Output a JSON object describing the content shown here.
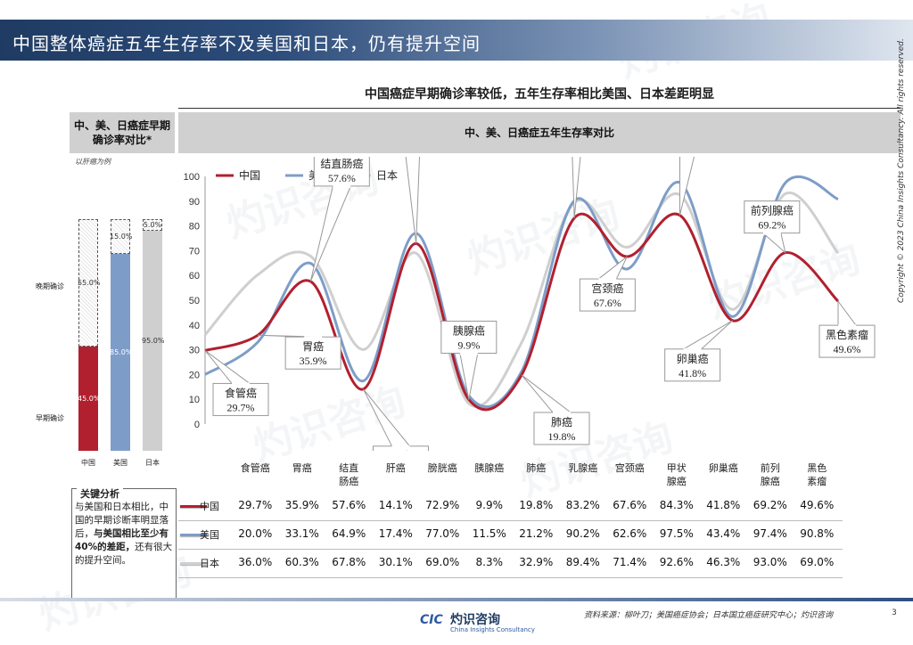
{
  "page": {
    "title": "中国整体癌症五年生存率不及美国和日本，仍有提升空间",
    "subtitle": "中国癌症早期确诊率较低，五年生存率相比美国、日本差距明显",
    "page_number": "3",
    "source": "资料来源：柳叶刀；美国癌症协会；日本国立癌症研究中心；灼识咨询",
    "copyright": "Copyright © 2023 China Insights Consultancy. All rights reserved.",
    "watermark_cn": "灼识咨询",
    "watermark_en": "China Insights Consultancy",
    "logo_mark": "CIC",
    "logo_text": "灼识咨询",
    "logo_sub": "China Insights Consultancy"
  },
  "left_panel": {
    "header": "中、美、日癌症早期确诊率对比*",
    "note": "以肝癌为例",
    "late_label": "晚期确诊",
    "early_label": "早期确诊",
    "bars": [
      {
        "country": "中国",
        "early": 45.0,
        "late": 55.0,
        "early_label": "45.0%",
        "late_label": "55.0%",
        "color": "#b1202f"
      },
      {
        "country": "美国",
        "early": 85.0,
        "late": 15.0,
        "early_label": "85.0%",
        "late_label": "15.0%",
        "color": "#7d9dc8"
      },
      {
        "country": "日本",
        "early": 95.0,
        "late": 5.0,
        "early_label": "95.0%",
        "late_label": "5.0%",
        "color": "#cfcfcf"
      }
    ]
  },
  "analysis": {
    "title": "关键分析",
    "text_plain": "与美国和日本相比，中国的早期诊断率明显落后，",
    "text_bold": "与美国相比至少有40%的差距，",
    "text_tail": "还有很大的提升空间。"
  },
  "chart_header": "中、美、日癌症五年生存率对比",
  "chart_data": {
    "type": "line",
    "categories": [
      "食管癌",
      "胃癌",
      "结直肠癌",
      "肝癌",
      "膀胱癌",
      "胰腺癌",
      "肺癌",
      "乳腺癌",
      "宫颈癌",
      "甲状腺癌",
      "卵巢癌",
      "前列腺癌",
      "黑色素瘤"
    ],
    "table_headers": [
      "食管癌",
      "胃癌",
      "结直\n肠癌",
      "肝癌",
      "膀胱癌",
      "胰腺癌",
      "肺癌",
      "乳腺癌",
      "宫颈癌",
      "甲状\n腺癌",
      "卵巢癌",
      "前列\n腺癌",
      "黑色\n素瘤"
    ],
    "series": [
      {
        "name": "中国",
        "color": "#b1202f",
        "values": [
          29.7,
          35.9,
          57.6,
          14.1,
          72.9,
          9.9,
          19.8,
          83.2,
          67.6,
          84.3,
          41.8,
          69.2,
          49.6
        ],
        "labels": [
          "29.7%",
          "35.9%",
          "57.6%",
          "14.1%",
          "72.9%",
          "9.9%",
          "19.8%",
          "83.2%",
          "67.6%",
          "84.3%",
          "41.8%",
          "69.2%",
          "49.6%"
        ]
      },
      {
        "name": "美国",
        "color": "#7d9dc8",
        "values": [
          20.0,
          33.1,
          64.9,
          17.4,
          77.0,
          11.5,
          21.2,
          90.2,
          62.6,
          97.5,
          43.4,
          97.4,
          90.8
        ],
        "labels": [
          "20.0%",
          "33.1%",
          "64.9%",
          "17.4%",
          "77.0%",
          "11.5%",
          "21.2%",
          "90.2%",
          "62.6%",
          "97.5%",
          "43.4%",
          "97.4%",
          "90.8%"
        ]
      },
      {
        "name": "日本",
        "color": "#cfcfcf",
        "values": [
          36.0,
          60.3,
          67.8,
          30.1,
          69.0,
          8.3,
          32.9,
          89.4,
          71.4,
          92.6,
          46.3,
          93.0,
          69.0
        ],
        "labels": [
          "36.0%",
          "60.3%",
          "67.8%",
          "30.1%",
          "69.0%",
          "8.3%",
          "32.9%",
          "89.4%",
          "71.4%",
          "92.6%",
          "46.3%",
          "93.0%",
          "69.0%"
        ]
      }
    ],
    "callouts": [
      {
        "name": "食管癌",
        "value": "29.7%"
      },
      {
        "name": "胃癌",
        "value": "35.9%"
      },
      {
        "name": "结直肠癌",
        "value": "57.6%"
      },
      {
        "name": "肝癌",
        "value": "14.1%"
      },
      {
        "name": "膀胱癌",
        "value": "72.9%"
      },
      {
        "name": "胰腺癌",
        "value": "9.9%"
      },
      {
        "name": "肺癌",
        "value": "19.8%"
      },
      {
        "name": "乳腺癌",
        "value": "83.2%"
      },
      {
        "name": "宫颈癌",
        "value": "67.6%"
      },
      {
        "name": "甲状腺癌",
        "value": "84.3%"
      },
      {
        "name": "卵巢癌",
        "value": "41.8%"
      },
      {
        "name": "前列腺癌",
        "value": "69.2%"
      },
      {
        "name": "黑色素瘤",
        "value": "49.6%"
      }
    ],
    "y_ticks": [
      0,
      10,
      20,
      30,
      40,
      50,
      60,
      70,
      80,
      90,
      100
    ],
    "ylim": [
      0,
      100
    ],
    "legend_position": "top-left"
  }
}
